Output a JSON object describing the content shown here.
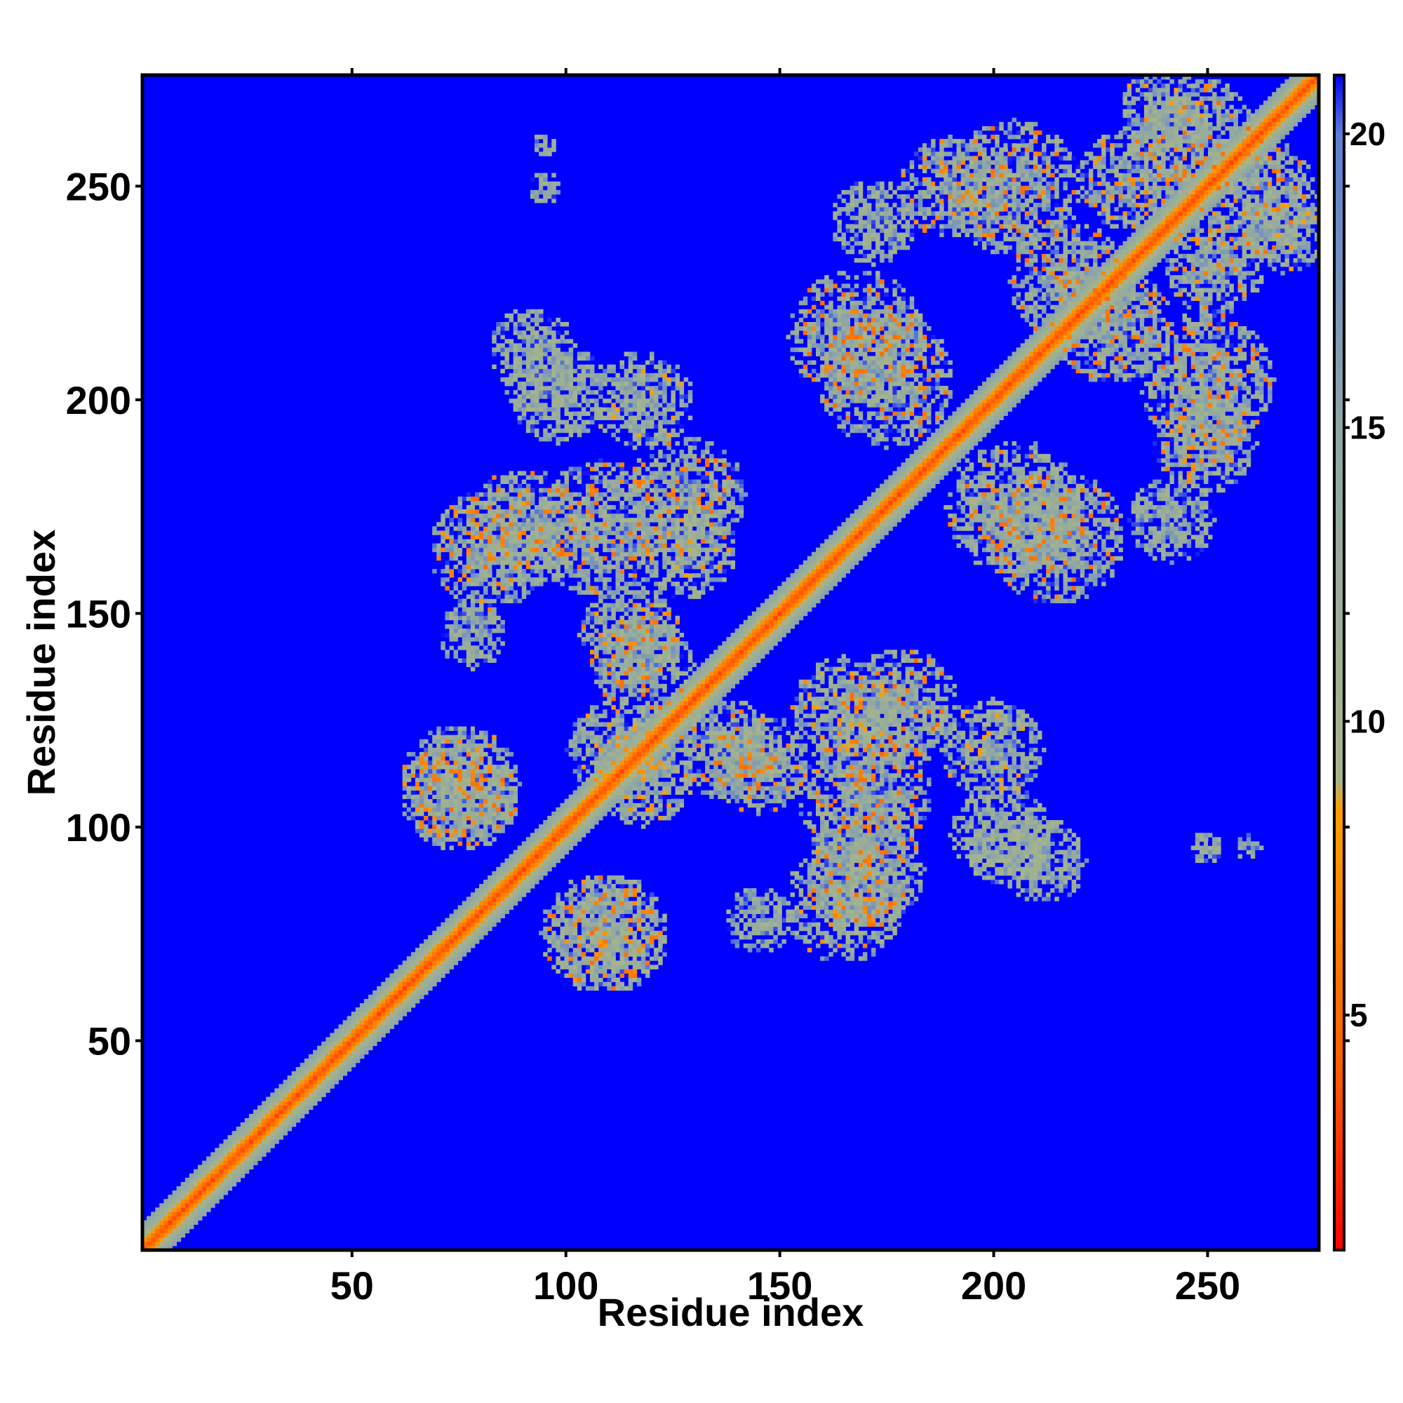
{
  "chart_data": {
    "type": "heatmap",
    "title": "",
    "xlabel": "Residue index",
    "ylabel": "Residue index",
    "xlim": [
      1,
      276
    ],
    "ylim": [
      1,
      276
    ],
    "x_ticks": [
      50,
      100,
      150,
      200,
      250
    ],
    "y_ticks": [
      50,
      100,
      150,
      200,
      250
    ],
    "colorbar": {
      "ticks": [
        5,
        10,
        15,
        20
      ],
      "range": [
        1,
        21
      ],
      "stops": [
        {
          "value": 1,
          "color": "#ff0000"
        },
        {
          "value": 4,
          "color": "#ff5a00"
        },
        {
          "value": 8.5,
          "color": "#ff9f00"
        },
        {
          "value": 9,
          "color": "#a6b58a"
        },
        {
          "value": 15,
          "color": "#8fa6a6"
        },
        {
          "value": 20,
          "color": "#5c7fd6"
        },
        {
          "value": 21,
          "color": "#0000ff"
        }
      ]
    },
    "background_value": 21,
    "background_color": "#0000ff",
    "diagonal": {
      "from": 1,
      "to": 276,
      "core_value": 3.8,
      "band_halfwidth": 6
    },
    "contact_clusters": [
      {
        "center_x": 95,
        "center_y": 250,
        "radius": 4,
        "min_value": 12
      },
      {
        "center_x": 98,
        "center_y": 202,
        "radius": 12,
        "min_value": 9
      },
      {
        "center_x": 82,
        "center_y": 165,
        "radius": 14,
        "min_value": 6
      },
      {
        "center_x": 108,
        "center_y": 170,
        "radius": 16,
        "min_value": 5
      },
      {
        "center_x": 128,
        "center_y": 165,
        "radius": 12,
        "min_value": 7
      },
      {
        "center_x": 115,
        "center_y": 145,
        "radius": 12,
        "min_value": 6
      },
      {
        "center_x": 75,
        "center_y": 110,
        "radius": 14,
        "min_value": 6
      },
      {
        "center_x": 112,
        "center_y": 118,
        "radius": 12,
        "min_value": 7
      },
      {
        "center_x": 138,
        "center_y": 118,
        "radius": 12,
        "min_value": 5
      },
      {
        "center_x": 108,
        "center_y": 75,
        "radius": 14,
        "min_value": 5
      },
      {
        "center_x": 145,
        "center_y": 78,
        "radius": 8,
        "min_value": 12
      },
      {
        "center_x": 178,
        "center_y": 128,
        "radius": 14,
        "min_value": 5
      },
      {
        "center_x": 170,
        "center_y": 90,
        "radius": 14,
        "min_value": 5
      },
      {
        "center_x": 200,
        "center_y": 118,
        "radius": 12,
        "min_value": 8
      },
      {
        "center_x": 212,
        "center_y": 92,
        "radius": 10,
        "min_value": 9
      },
      {
        "center_x": 175,
        "center_y": 205,
        "radius": 16,
        "min_value": 5
      },
      {
        "center_x": 190,
        "center_y": 250,
        "radius": 12,
        "min_value": 6
      },
      {
        "center_x": 215,
        "center_y": 168,
        "radius": 16,
        "min_value": 5
      },
      {
        "center_x": 228,
        "center_y": 218,
        "radius": 14,
        "min_value": 5
      },
      {
        "center_x": 248,
        "center_y": 262,
        "radius": 14,
        "min_value": 5
      },
      {
        "center_x": 250,
        "center_y": 205,
        "radius": 16,
        "min_value": 5
      },
      {
        "center_x": 252,
        "center_y": 232,
        "radius": 12,
        "min_value": 6
      },
      {
        "center_x": 268,
        "center_y": 240,
        "radius": 10,
        "min_value": 8
      },
      {
        "center_x": 242,
        "center_y": 172,
        "radius": 10,
        "min_value": 11
      },
      {
        "center_x": 260,
        "center_y": 95,
        "radius": 3,
        "min_value": 14
      }
    ]
  }
}
